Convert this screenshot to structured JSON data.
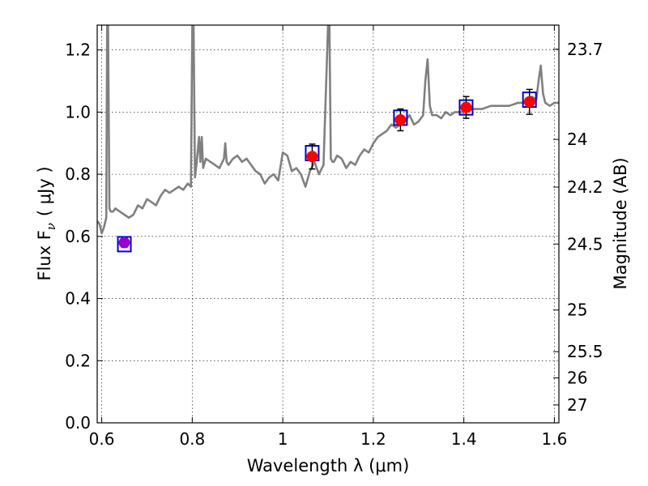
{
  "chart_data": {
    "type": "scatter",
    "xlabel": "Wavelength  λ (μm)",
    "ylabel": "Flux  F",
    "ylabel_sub": "ν",
    "ylabel_unit": "( μJy )",
    "y2label": "Magnitude (AB)",
    "xlim": [
      0.59,
      1.61
    ],
    "ylim": [
      0.0,
      1.28
    ],
    "grid": true,
    "x_ticks": [
      0.6,
      0.8,
      1.0,
      1.2,
      1.4,
      1.6
    ],
    "x_tick_labels": [
      "0.6",
      "0.8",
      "1",
      "1.2",
      "1.4",
      "1.6"
    ],
    "y_ticks": [
      0.0,
      0.2,
      0.4,
      0.6,
      0.8,
      1.0,
      1.2
    ],
    "y_tick_labels": [
      "0.0",
      "0.2",
      "0.4",
      "0.6",
      "0.8",
      "1.0",
      "1.2"
    ],
    "y2_ticks": [
      23.7,
      24,
      24.2,
      24.5,
      25,
      25.5,
      26,
      27
    ],
    "y2_tick_labels": [
      "23.7",
      "24",
      "24.2",
      "24.5",
      "25",
      "25.5",
      "26",
      "27"
    ],
    "colors": {
      "spectrum": "#808080",
      "model_box": "#0000cc",
      "observed": "#ff0000",
      "observed_first": "#9900cc",
      "errorbar": "#000000"
    },
    "spectrum": {
      "x": [
        0.59,
        0.595,
        0.6,
        0.605,
        0.61,
        0.612,
        0.614,
        0.617,
        0.62,
        0.625,
        0.63,
        0.64,
        0.65,
        0.66,
        0.67,
        0.68,
        0.69,
        0.7,
        0.71,
        0.72,
        0.73,
        0.74,
        0.75,
        0.76,
        0.77,
        0.78,
        0.79,
        0.797,
        0.8,
        0.803,
        0.806,
        0.81,
        0.815,
        0.818,
        0.821,
        0.824,
        0.83,
        0.84,
        0.85,
        0.86,
        0.87,
        0.873,
        0.876,
        0.88,
        0.89,
        0.9,
        0.91,
        0.92,
        0.93,
        0.94,
        0.95,
        0.96,
        0.97,
        0.98,
        0.99,
        1.0,
        1.01,
        1.02,
        1.03,
        1.04,
        1.05,
        1.06,
        1.07,
        1.08,
        1.09,
        1.1,
        1.103,
        1.106,
        1.11,
        1.113,
        1.12,
        1.13,
        1.14,
        1.15,
        1.16,
        1.17,
        1.18,
        1.19,
        1.2,
        1.21,
        1.22,
        1.23,
        1.24,
        1.25,
        1.26,
        1.27,
        1.28,
        1.29,
        1.3,
        1.31,
        1.315,
        1.32,
        1.325,
        1.33,
        1.34,
        1.35,
        1.36,
        1.37,
        1.38,
        1.4,
        1.42,
        1.44,
        1.46,
        1.48,
        1.5,
        1.52,
        1.54,
        1.55,
        1.56,
        1.565,
        1.57,
        1.575,
        1.58,
        1.59,
        1.6,
        1.61
      ],
      "y": [
        0.65,
        0.64,
        0.61,
        0.63,
        0.66,
        1.28,
        1.28,
        0.69,
        0.68,
        0.68,
        0.69,
        0.68,
        0.67,
        0.66,
        0.67,
        0.7,
        0.69,
        0.72,
        0.71,
        0.7,
        0.73,
        0.75,
        0.74,
        0.75,
        0.76,
        0.75,
        0.77,
        0.76,
        1.28,
        1.28,
        0.79,
        0.84,
        0.92,
        0.84,
        0.92,
        0.82,
        0.85,
        0.84,
        0.83,
        0.82,
        0.85,
        0.9,
        0.84,
        0.83,
        0.85,
        0.86,
        0.84,
        0.85,
        0.83,
        0.81,
        0.8,
        0.77,
        0.79,
        0.8,
        0.78,
        0.87,
        0.86,
        0.81,
        0.82,
        0.8,
        0.76,
        0.81,
        0.84,
        0.8,
        0.83,
        1.28,
        1.28,
        0.85,
        0.84,
        0.84,
        0.86,
        0.85,
        0.82,
        0.84,
        0.83,
        0.86,
        0.88,
        0.87,
        0.9,
        0.92,
        0.93,
        0.94,
        0.96,
        0.95,
        0.96,
        0.97,
        0.99,
        0.96,
        0.97,
        0.99,
        1.1,
        1.17,
        1.02,
        0.99,
        0.99,
        0.98,
        1.0,
        0.99,
        1.0,
        1.0,
        1.01,
        1.01,
        1.02,
        1.02,
        1.02,
        1.03,
        1.03,
        1.05,
        1.04,
        1.1,
        1.15,
        1.06,
        1.03,
        1.02,
        1.03,
        1.03
      ]
    },
    "points": [
      {
        "x": 0.65,
        "model": 0.575,
        "observed": 0.58,
        "err": 0.015
      },
      {
        "x": 1.065,
        "model": 0.868,
        "observed": 0.857,
        "err": 0.04
      },
      {
        "x": 1.26,
        "model": 0.982,
        "observed": 0.975,
        "err": 0.035
      },
      {
        "x": 1.405,
        "model": 1.015,
        "observed": 1.015,
        "err": 0.035
      },
      {
        "x": 1.545,
        "model": 1.04,
        "observed": 1.033,
        "err": 0.04
      }
    ]
  }
}
